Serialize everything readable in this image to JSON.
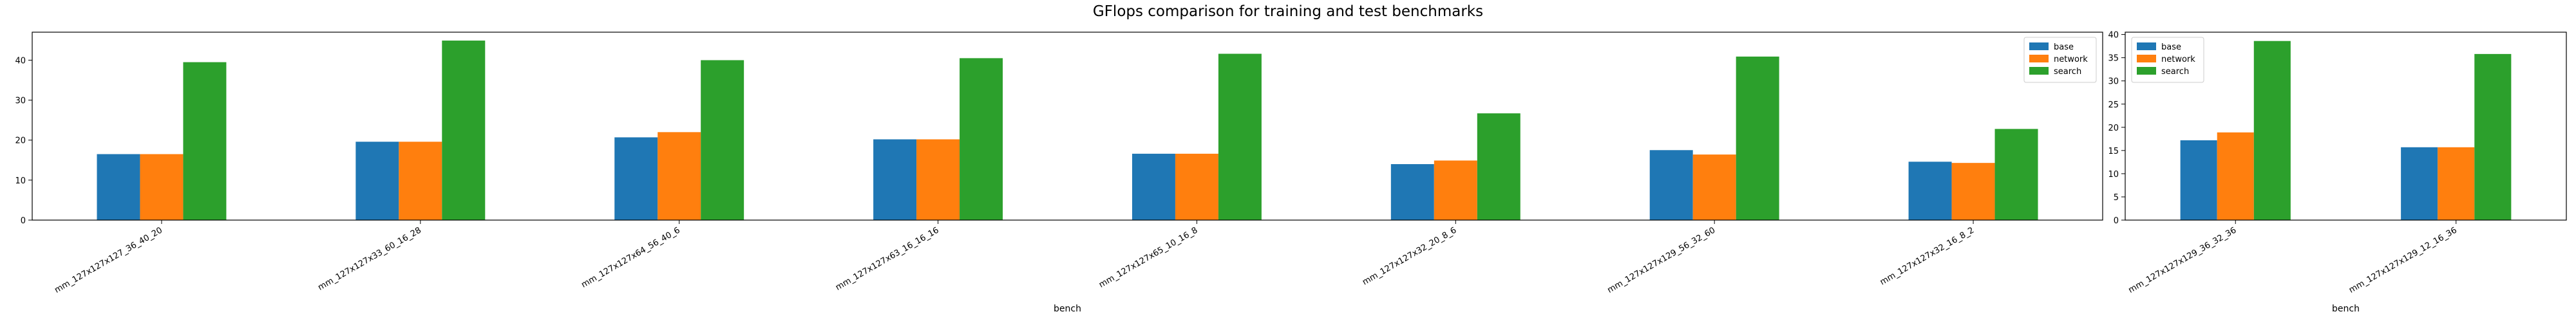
{
  "figure": {
    "title": "GFlops comparison for training and test benchmarks"
  },
  "colors": {
    "base": "#1f77b4",
    "network": "#ff7f0e",
    "search": "#2ca02c"
  },
  "chart_data": [
    {
      "type": "bar",
      "title": "",
      "xlabel": "bench",
      "ylabel": "",
      "ylim": [
        0,
        47
      ],
      "yticks": [
        0,
        10,
        20,
        30,
        40
      ],
      "grid": false,
      "legend_position": "top-right",
      "categories": [
        "mm_127x127x127_36_40_20",
        "mm_127x127x33_60_16_28",
        "mm_127x127x64_56_40_6",
        "mm_127x127x63_16_16_16",
        "mm_127x127x65_10_16_8",
        "mm_127x127x32_20_8_6",
        "mm_127x127x129_56_32_60",
        "mm_127x127x32_16_8_2"
      ],
      "series": [
        {
          "name": "base",
          "values": [
            16.5,
            19.6,
            20.7,
            20.2,
            16.6,
            14.0,
            17.5,
            14.6
          ]
        },
        {
          "name": "network",
          "values": [
            16.5,
            19.6,
            22.0,
            20.2,
            16.6,
            14.9,
            16.4,
            14.3
          ]
        },
        {
          "name": "search",
          "values": [
            39.5,
            44.9,
            40.0,
            40.5,
            41.6,
            26.7,
            40.9,
            22.8
          ]
        }
      ]
    },
    {
      "type": "bar",
      "title": "",
      "xlabel": "bench",
      "ylabel": "",
      "ylim": [
        0,
        40.5
      ],
      "yticks": [
        0,
        5,
        10,
        15,
        20,
        25,
        30,
        35,
        40
      ],
      "grid": false,
      "legend_position": "top-left",
      "categories": [
        "mm_127x127x129_36_32_36",
        "mm_127x127x129_12_16_36"
      ],
      "series": [
        {
          "name": "base",
          "values": [
            17.2,
            15.7
          ]
        },
        {
          "name": "network",
          "values": [
            18.9,
            15.7
          ]
        },
        {
          "name": "search",
          "values": [
            38.6,
            35.8
          ]
        }
      ]
    }
  ]
}
